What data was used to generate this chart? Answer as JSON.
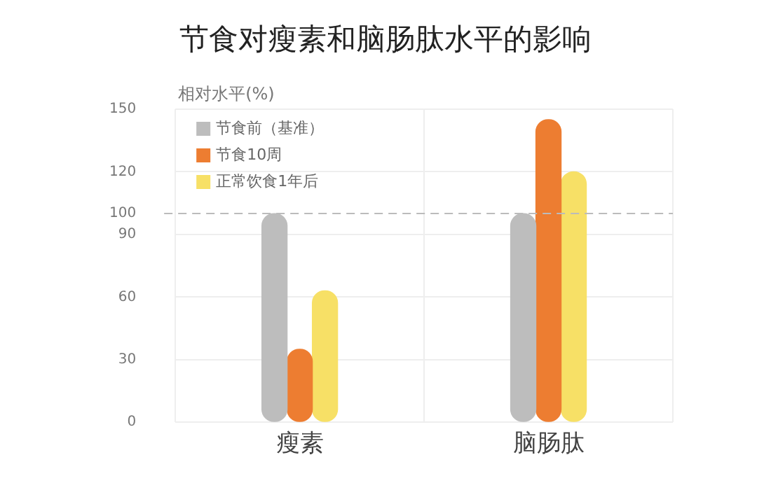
{
  "chart_data": {
    "type": "bar",
    "title": "节食对瘦素和脑肠肽水平的影响",
    "ylabel": "相对水平(%)",
    "categories": [
      "瘦素",
      "脑肠肽"
    ],
    "series": [
      {
        "name": "节食前（基准）",
        "color": "#bdbdbd",
        "values": [
          100,
          100
        ]
      },
      {
        "name": "节食10周",
        "color": "#ed7d31",
        "values": [
          35,
          145
        ]
      },
      {
        "name": "正常饮食1年后",
        "color": "#f7e066",
        "values": [
          63,
          120
        ]
      }
    ],
    "ylim": [
      0,
      150
    ],
    "yticks": [
      0,
      30,
      60,
      90,
      100,
      120,
      150
    ],
    "grid": true,
    "legend": "top left",
    "ref_lines": [
      {
        "axis": "y",
        "value": 100,
        "color": "#bbbbbb",
        "line_style": "dashed"
      }
    ]
  }
}
